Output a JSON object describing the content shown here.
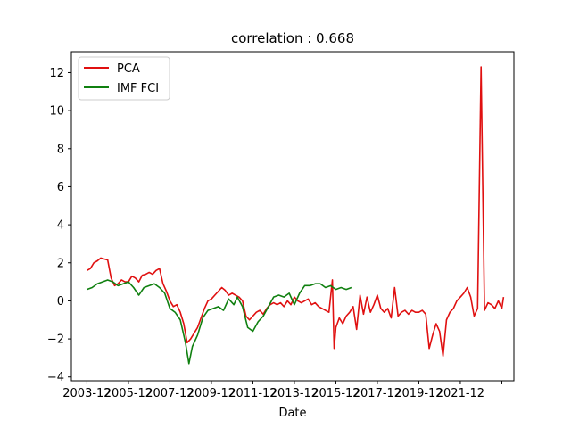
{
  "chart_data": {
    "type": "line",
    "title": "correlation : 0.668",
    "xlabel": "Date",
    "ylabel": "",
    "xlim": [
      "2003-03",
      "2024-07"
    ],
    "ylim": [
      -4.2,
      13.1
    ],
    "x_ticks": [
      "2003-12",
      "2005-12",
      "2007-12",
      "2009-12",
      "2011-12",
      "2013-12",
      "2015-12",
      "2017-12",
      "2019-12",
      "2021-12",
      "2023-12"
    ],
    "x_tick_labels": [
      "2003-12",
      "2005-12",
      "2007-12",
      "2009-12",
      "2011-12",
      "2013-12",
      "2015-12",
      "2017-12",
      "2019-12",
      "2021-12",
      ""
    ],
    "y_ticks": [
      -4,
      -2,
      0,
      2,
      4,
      6,
      8,
      10,
      12
    ],
    "grid": false,
    "legend_position": "upper-left",
    "series": [
      {
        "name": "PCA",
        "color": "#e01010",
        "points": [
          [
            "2003-12",
            1.6
          ],
          [
            "2004-02",
            1.7
          ],
          [
            "2004-04",
            2.0
          ],
          [
            "2004-06",
            2.1
          ],
          [
            "2004-08",
            2.25
          ],
          [
            "2004-10",
            2.2
          ],
          [
            "2004-12",
            2.15
          ],
          [
            "2005-02",
            1.2
          ],
          [
            "2005-04",
            0.8
          ],
          [
            "2005-06",
            0.9
          ],
          [
            "2005-08",
            1.1
          ],
          [
            "2005-10",
            1.0
          ],
          [
            "2005-12",
            1.0
          ],
          [
            "2006-02",
            1.3
          ],
          [
            "2006-04",
            1.2
          ],
          [
            "2006-06",
            1.0
          ],
          [
            "2006-08",
            1.35
          ],
          [
            "2006-10",
            1.4
          ],
          [
            "2006-12",
            1.5
          ],
          [
            "2007-02",
            1.4
          ],
          [
            "2007-04",
            1.6
          ],
          [
            "2007-06",
            1.7
          ],
          [
            "2007-08",
            0.9
          ],
          [
            "2007-10",
            0.5
          ],
          [
            "2007-12",
            0.0
          ],
          [
            "2008-02",
            -0.3
          ],
          [
            "2008-04",
            -0.2
          ],
          [
            "2008-06",
            -0.6
          ],
          [
            "2008-08",
            -1.2
          ],
          [
            "2008-10",
            -2.2
          ],
          [
            "2008-12",
            -2.0
          ],
          [
            "2009-02",
            -1.7
          ],
          [
            "2009-04",
            -1.4
          ],
          [
            "2009-06",
            -0.9
          ],
          [
            "2009-08",
            -0.4
          ],
          [
            "2009-10",
            0.0
          ],
          [
            "2009-12",
            0.1
          ],
          [
            "2010-02",
            0.3
          ],
          [
            "2010-04",
            0.5
          ],
          [
            "2010-06",
            0.7
          ],
          [
            "2010-08",
            0.55
          ],
          [
            "2010-10",
            0.3
          ],
          [
            "2010-12",
            0.4
          ],
          [
            "2011-02",
            0.3
          ],
          [
            "2011-04",
            0.2
          ],
          [
            "2011-06",
            0.0
          ],
          [
            "2011-08",
            -0.8
          ],
          [
            "2011-10",
            -1.0
          ],
          [
            "2011-12",
            -0.8
          ],
          [
            "2012-02",
            -0.6
          ],
          [
            "2012-04",
            -0.5
          ],
          [
            "2012-06",
            -0.7
          ],
          [
            "2012-08",
            -0.4
          ],
          [
            "2012-10",
            -0.2
          ],
          [
            "2012-12",
            -0.1
          ],
          [
            "2013-02",
            -0.2
          ],
          [
            "2013-04",
            -0.1
          ],
          [
            "2013-06",
            -0.3
          ],
          [
            "2013-08",
            0.0
          ],
          [
            "2013-10",
            -0.2
          ],
          [
            "2013-12",
            0.2
          ],
          [
            "2014-02",
            0.0
          ],
          [
            "2014-04",
            -0.1
          ],
          [
            "2014-06",
            0.0
          ],
          [
            "2014-08",
            0.1
          ],
          [
            "2014-10",
            -0.2
          ],
          [
            "2014-12",
            -0.1
          ],
          [
            "2015-02",
            -0.3
          ],
          [
            "2015-04",
            -0.4
          ],
          [
            "2015-06",
            -0.5
          ],
          [
            "2015-08",
            -0.6
          ],
          [
            "2015-10",
            1.1
          ],
          [
            "2015-11",
            -2.5
          ],
          [
            "2015-12",
            -1.4
          ],
          [
            "2016-02",
            -0.9
          ],
          [
            "2016-04",
            -1.2
          ],
          [
            "2016-06",
            -0.8
          ],
          [
            "2016-08",
            -0.6
          ],
          [
            "2016-10",
            -0.3
          ],
          [
            "2016-12",
            -1.5
          ],
          [
            "2017-02",
            0.3
          ],
          [
            "2017-04",
            -0.7
          ],
          [
            "2017-06",
            0.2
          ],
          [
            "2017-08",
            -0.6
          ],
          [
            "2017-10",
            -0.2
          ],
          [
            "2017-12",
            0.3
          ],
          [
            "2018-02",
            -0.4
          ],
          [
            "2018-04",
            -0.6
          ],
          [
            "2018-06",
            -0.4
          ],
          [
            "2018-08",
            -0.9
          ],
          [
            "2018-10",
            0.7
          ],
          [
            "2018-12",
            -0.8
          ],
          [
            "2019-02",
            -0.6
          ],
          [
            "2019-04",
            -0.5
          ],
          [
            "2019-06",
            -0.7
          ],
          [
            "2019-08",
            -0.5
          ],
          [
            "2019-10",
            -0.6
          ],
          [
            "2019-12",
            -0.6
          ],
          [
            "2020-02",
            -0.5
          ],
          [
            "2020-04",
            -0.7
          ],
          [
            "2020-06",
            -2.5
          ],
          [
            "2020-08",
            -1.8
          ],
          [
            "2020-10",
            -1.2
          ],
          [
            "2020-12",
            -1.6
          ],
          [
            "2021-02",
            -2.9
          ],
          [
            "2021-04",
            -1.0
          ],
          [
            "2021-06",
            -0.6
          ],
          [
            "2021-08",
            -0.4
          ],
          [
            "2021-10",
            0.0
          ],
          [
            "2021-12",
            0.2
          ],
          [
            "2022-02",
            0.4
          ],
          [
            "2022-04",
            0.7
          ],
          [
            "2022-06",
            0.2
          ],
          [
            "2022-08",
            -0.8
          ],
          [
            "2022-10",
            -0.4
          ],
          [
            "2022-12",
            12.3
          ],
          [
            "2023-02",
            -0.5
          ],
          [
            "2023-04",
            -0.1
          ],
          [
            "2023-06",
            -0.2
          ],
          [
            "2023-08",
            -0.4
          ],
          [
            "2023-10",
            0.0
          ],
          [
            "2023-12",
            -0.4
          ],
          [
            "2024-01",
            0.2
          ]
        ]
      },
      {
        "name": "IMF FCI",
        "color": "#108010",
        "points": [
          [
            "2003-12",
            0.6
          ],
          [
            "2004-03",
            0.7
          ],
          [
            "2004-06",
            0.9
          ],
          [
            "2004-09",
            1.0
          ],
          [
            "2004-12",
            1.1
          ],
          [
            "2005-03",
            1.0
          ],
          [
            "2005-06",
            0.8
          ],
          [
            "2005-09",
            0.9
          ],
          [
            "2005-12",
            1.0
          ],
          [
            "2006-03",
            0.7
          ],
          [
            "2006-06",
            0.3
          ],
          [
            "2006-09",
            0.7
          ],
          [
            "2006-12",
            0.8
          ],
          [
            "2007-03",
            0.9
          ],
          [
            "2007-06",
            0.7
          ],
          [
            "2007-09",
            0.4
          ],
          [
            "2007-12",
            -0.4
          ],
          [
            "2008-03",
            -0.6
          ],
          [
            "2008-06",
            -1.0
          ],
          [
            "2008-09",
            -2.2
          ],
          [
            "2008-11",
            -3.3
          ],
          [
            "2009-01",
            -2.4
          ],
          [
            "2009-04",
            -1.8
          ],
          [
            "2009-07",
            -0.9
          ],
          [
            "2009-10",
            -0.5
          ],
          [
            "2010-01",
            -0.4
          ],
          [
            "2010-04",
            -0.3
          ],
          [
            "2010-07",
            -0.5
          ],
          [
            "2010-10",
            0.1
          ],
          [
            "2011-01",
            -0.2
          ],
          [
            "2011-03",
            0.2
          ],
          [
            "2011-06",
            -0.3
          ],
          [
            "2011-09",
            -1.4
          ],
          [
            "2011-12",
            -1.6
          ],
          [
            "2012-03",
            -1.1
          ],
          [
            "2012-06",
            -0.8
          ],
          [
            "2012-09",
            -0.3
          ],
          [
            "2012-12",
            0.2
          ],
          [
            "2013-03",
            0.3
          ],
          [
            "2013-06",
            0.2
          ],
          [
            "2013-09",
            0.4
          ],
          [
            "2013-12",
            -0.2
          ],
          [
            "2014-03",
            0.4
          ],
          [
            "2014-06",
            0.8
          ],
          [
            "2014-09",
            0.8
          ],
          [
            "2014-12",
            0.9
          ],
          [
            "2015-03",
            0.9
          ],
          [
            "2015-06",
            0.7
          ],
          [
            "2015-09",
            0.8
          ],
          [
            "2015-12",
            0.6
          ],
          [
            "2016-03",
            0.7
          ],
          [
            "2016-06",
            0.6
          ],
          [
            "2016-09",
            0.7
          ]
        ]
      }
    ]
  }
}
